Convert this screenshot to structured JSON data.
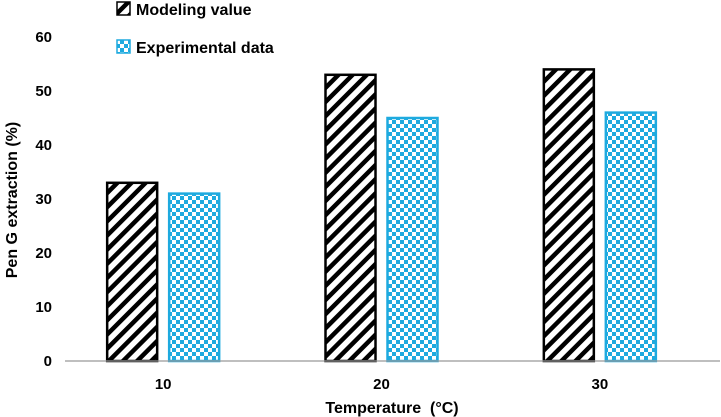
{
  "chart_data": {
    "type": "bar",
    "categories": [
      "10",
      "20",
      "30"
    ],
    "series": [
      {
        "name": "Modeling value",
        "values": [
          33,
          53,
          54
        ],
        "color": "#000000",
        "pattern": "diagonal-stripes"
      },
      {
        "name": "Experimental data",
        "values": [
          31,
          45,
          46
        ],
        "color": "#1eaadf",
        "pattern": "checkerboard"
      }
    ],
    "title": "",
    "xlabel": "Temperature  (°C)",
    "ylabel": "Pen G extraction (%)",
    "ylim": [
      0,
      60
    ],
    "yticks": [
      0,
      10,
      20,
      30,
      40,
      50,
      60
    ],
    "grid": false,
    "legend": "top-left"
  }
}
